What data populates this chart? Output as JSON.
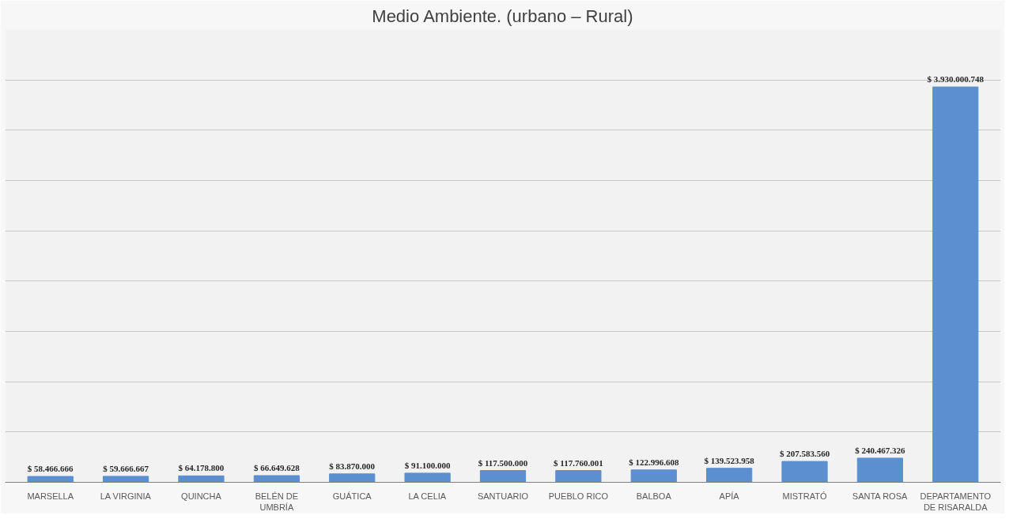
{
  "chart_data": {
    "type": "bar",
    "title": "Medio Ambiente. (urbano – Rural)",
    "categories": [
      "MARSELLA",
      "LA VIRGINIA",
      "QUINCHA",
      "BELÉN DE UMBRÍA",
      "GUÁTICA",
      "LA CELIA",
      "SANTUARIO",
      "PUEBLO RICO",
      "BALBOA",
      "APÍA",
      "MISTRATÓ",
      "SANTA ROSA",
      "DEPARTAMENTO DE RISARALDA"
    ],
    "values": [
      58466666,
      59666667,
      64178800,
      66649628,
      83870000,
      91100000,
      117500000,
      117760001,
      122996608,
      139523958,
      207583560,
      240467326,
      3930000748
    ],
    "value_labels": [
      "$ 58.466.666",
      "$ 59.666.667",
      "$ 64.178.800",
      "$ 66.649.628",
      "$ 83.870.000",
      "$ 91.100.000",
      "$ 117.500.000",
      "$ 117.760.001",
      "$ 122.996.608",
      "$ 139.523.958",
      "$ 207.583.560",
      "$ 240.467.326",
      "$ 3.930.000.748"
    ],
    "color": "#5b8fd0",
    "ylim": [
      0,
      4500000000
    ],
    "yticks": [
      {
        "value": 0,
        "label": null
      },
      {
        "value": 500000000,
        "label": null
      },
      {
        "value": 1000000000,
        "label": null
      },
      {
        "value": 1500000000,
        "label": null
      },
      {
        "value": 2000000000,
        "label": null
      },
      {
        "value": 2500000000,
        "label": null
      },
      {
        "value": 3000000000,
        "label": null
      },
      {
        "value": 3500000000,
        "label": null
      },
      {
        "value": 4000000000,
        "label": null
      },
      {
        "value": 4500000000,
        "label": null
      }
    ],
    "grid": "y",
    "tick_labels": "x"
  }
}
